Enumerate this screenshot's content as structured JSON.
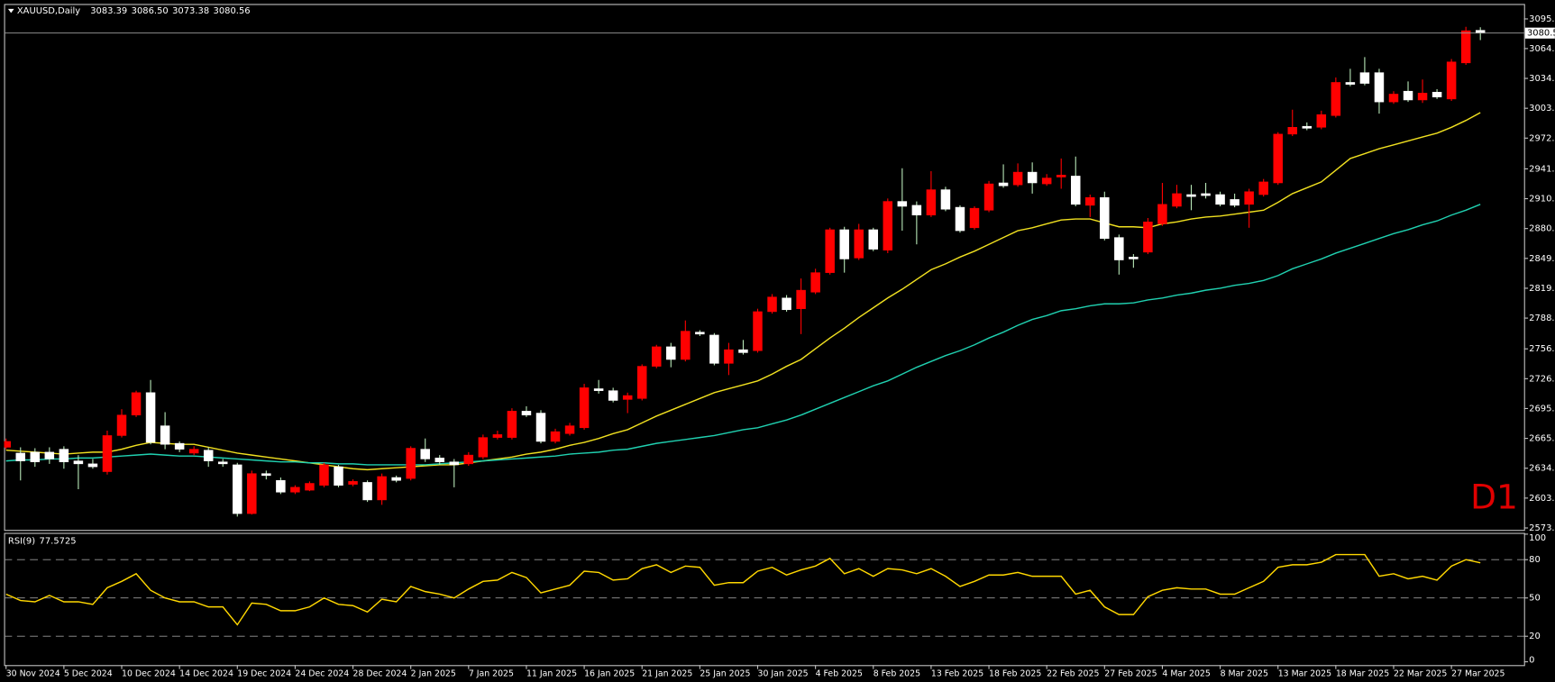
{
  "chart_data": [
    {
      "type": "candlestick",
      "title": "XAUUSD,Daily",
      "last_bar_labels": [
        "3083.39",
        "3086.50",
        "3073.38",
        "3080.56"
      ],
      "timeframe_label": "D1",
      "categories": [
        "30 Nov 2024",
        null,
        null,
        null,
        "5 Dec 2024",
        null,
        null,
        null,
        "10 Dec 2024",
        null,
        null,
        null,
        "14 Dec 2024",
        null,
        null,
        null,
        "19 Dec 2024",
        null,
        null,
        null,
        "24 Dec 2024",
        null,
        null,
        null,
        "28 Dec 2024",
        null,
        null,
        null,
        "2 Jan 2025",
        null,
        null,
        null,
        "7 Jan 2025",
        null,
        null,
        null,
        "11 Jan 2025",
        null,
        null,
        null,
        "16 Jan 2025",
        null,
        null,
        null,
        "21 Jan 2025",
        null,
        null,
        null,
        "25 Jan 2025",
        null,
        null,
        null,
        "30 Jan 2025",
        null,
        null,
        null,
        "4 Feb 2025",
        null,
        null,
        null,
        "8 Feb 2025",
        null,
        null,
        null,
        "13 Feb 2025",
        null,
        null,
        null,
        "18 Feb 2025",
        null,
        null,
        null,
        "22 Feb 2025",
        null,
        null,
        null,
        "27 Feb 2025",
        null,
        null,
        null,
        "4 Mar 2025",
        null,
        null,
        null,
        "8 Mar 2025",
        null,
        null,
        null,
        "13 Mar 2025",
        null,
        null,
        null,
        "18 Mar 2025",
        null,
        null,
        null,
        "22 Mar 2025",
        null,
        null,
        null,
        "27 Mar 2025",
        null,
        null
      ],
      "open": [
        2656,
        2650,
        2651,
        2651,
        2654,
        2642,
        2639,
        2631,
        2668,
        2689,
        2712,
        2678,
        2660,
        2650,
        2653,
        2641,
        2638,
        2588,
        2629,
        2622,
        2610,
        2612,
        2617,
        2636,
        2618,
        2620,
        2602,
        2625,
        2624,
        2654,
        2645,
        2641,
        2639,
        2646,
        2666,
        2666,
        2693,
        2691,
        2662,
        2670,
        2676,
        2716,
        2714,
        2705,
        2706,
        2739,
        2759,
        2746,
        2774,
        2771,
        2742,
        2756,
        2755,
        2795,
        2809,
        2798,
        2815,
        2835,
        2879,
        2850,
        2879,
        2858,
        2908,
        2904,
        2894,
        2920,
        2902,
        2881,
        2899,
        2927,
        2925,
        2938,
        2926,
        2933,
        2934,
        2904,
        2912,
        2871,
        2851,
        2856,
        2885,
        2903,
        2915,
        2916,
        2915,
        2910,
        2905,
        2915,
        2927,
        2977,
        2985,
        2984,
        2996,
        3030,
        3040,
        3040,
        3010,
        3021,
        3012,
        3020,
        3013,
        3050,
        3083.39
      ],
      "high": [
        2665,
        2656,
        2655,
        2656,
        2657,
        2648,
        2644,
        2673,
        2695,
        2714,
        2725,
        2692,
        2662,
        2657,
        2656,
        2644,
        2640,
        2632,
        2632,
        2625,
        2617,
        2621,
        2640,
        2638,
        2623,
        2622,
        2629,
        2627,
        2657,
        2665,
        2648,
        2644,
        2651,
        2669,
        2673,
        2696,
        2698,
        2694,
        2675,
        2681,
        2721,
        2725,
        2717,
        2712,
        2741,
        2761,
        2763,
        2786,
        2776,
        2773,
        2763,
        2766,
        2798,
        2813,
        2812,
        2829,
        2839,
        2881,
        2882,
        2885,
        2881,
        2911,
        2942,
        2908,
        2939,
        2923,
        2904,
        2903,
        2929,
        2946,
        2947,
        2948,
        2936,
        2952,
        2954,
        2915,
        2918,
        2874,
        2854,
        2891,
        2927,
        2925,
        2925,
        2927,
        2918,
        2916,
        2921,
        2931,
        2979,
        3002,
        2989,
        3001,
        3035,
        3044,
        3056,
        3044,
        3021,
        3031,
        3033,
        3023,
        3054,
        3087,
        3086.5
      ],
      "low": [
        2654,
        2622,
        2636,
        2639,
        2634,
        2613,
        2634,
        2628,
        2666,
        2687,
        2659,
        2654,
        2651,
        2648,
        2636,
        2636,
        2585,
        2587,
        2623,
        2608,
        2608,
        2611,
        2615,
        2615,
        2616,
        2600,
        2597,
        2620,
        2622,
        2641,
        2638,
        2615,
        2637,
        2644,
        2664,
        2664,
        2687,
        2660,
        2660,
        2668,
        2674,
        2711,
        2702,
        2691,
        2704,
        2737,
        2738,
        2744,
        2770,
        2740,
        2730,
        2751,
        2753,
        2793,
        2795,
        2772,
        2813,
        2833,
        2835,
        2848,
        2857,
        2855,
        2878,
        2864,
        2892,
        2898,
        2876,
        2879,
        2897,
        2922,
        2923,
        2916,
        2924,
        2921,
        2903,
        2892,
        2868,
        2833,
        2840,
        2854,
        2883,
        2901,
        2899,
        2911,
        2903,
        2902,
        2881,
        2913,
        2925,
        2975,
        2981,
        2982,
        2994,
        3026,
        3027,
        2998,
        3008,
        3010,
        3009,
        3013,
        3011,
        3048,
        3073.38
      ],
      "close": [
        2662,
        2642,
        2641,
        2644,
        2641,
        2639,
        2636,
        2668,
        2689,
        2712,
        2661,
        2659,
        2654,
        2654,
        2642,
        2639,
        2588,
        2629,
        2627,
        2610,
        2615,
        2619,
        2638,
        2617,
        2621,
        2602,
        2626,
        2622,
        2655,
        2644,
        2641,
        2638,
        2648,
        2666,
        2669,
        2693,
        2689,
        2662,
        2672,
        2678,
        2717,
        2714,
        2704,
        2709,
        2739,
        2759,
        2746,
        2775,
        2772,
        2742,
        2756,
        2753,
        2795,
        2810,
        2797,
        2817,
        2835,
        2879,
        2849,
        2879,
        2859,
        2908,
        2903,
        2894,
        2920,
        2900,
        2878,
        2901,
        2926,
        2924,
        2938,
        2927,
        2932,
        2935,
        2905,
        2912,
        2870,
        2848,
        2849,
        2887,
        2905,
        2916,
        2913,
        2914,
        2905,
        2904,
        2918,
        2928,
        2977,
        2984,
        2983,
        2997,
        3030,
        3028,
        3029,
        3010,
        3018,
        3012,
        3019,
        3015,
        3051,
        3083,
        3080.56
      ],
      "up_color": "#ff0000",
      "down_color": "#ffffff",
      "series": [
        {
          "color": "#f0e020",
          "values": [
            2653,
            2652,
            2651,
            2650,
            2649,
            2650,
            2651,
            2651,
            2654,
            2658,
            2661,
            2660,
            2659,
            2659,
            2656,
            2653,
            2650,
            2648,
            2646,
            2644,
            2642,
            2640,
            2638,
            2636,
            2634,
            2633,
            2634,
            2635,
            2636,
            2637,
            2638,
            2638,
            2640,
            2642,
            2644,
            2646,
            2649,
            2651,
            2654,
            2658,
            2661,
            2665,
            2670,
            2674,
            2681,
            2688,
            2694,
            2700,
            2706,
            2712,
            2716,
            2720,
            2724,
            2731,
            2739,
            2746,
            2757,
            2768,
            2778,
            2789,
            2799,
            2809,
            2818,
            2828,
            2838,
            2844,
            2851,
            2857,
            2864,
            2871,
            2878,
            2881,
            2885,
            2889,
            2890,
            2890,
            2886,
            2882,
            2882,
            2881,
            2885,
            2887,
            2890,
            2892,
            2893,
            2895,
            2897,
            2899,
            2907,
            2916,
            2922,
            2928,
            2940,
            2952,
            2957,
            2962,
            2966,
            2970,
            2974,
            2978,
            2984,
            2991,
            2999
          ]
        },
        {
          "color": "#20d0b0",
          "values": [
            2642,
            2643,
            2643,
            2644,
            2644,
            2645,
            2645,
            2646,
            2647,
            2648,
            2649,
            2648,
            2647,
            2647,
            2646,
            2645,
            2644,
            2643,
            2642,
            2641,
            2641,
            2640,
            2640,
            2639,
            2639,
            2638,
            2638,
            2638,
            2638,
            2638,
            2639,
            2640,
            2641,
            2642,
            2643,
            2644,
            2645,
            2646,
            2647,
            2649,
            2650,
            2651,
            2653,
            2654,
            2657,
            2660,
            2662,
            2664,
            2666,
            2668,
            2671,
            2674,
            2676,
            2680,
            2684,
            2689,
            2695,
            2701,
            2707,
            2713,
            2719,
            2724,
            2731,
            2738,
            2744,
            2750,
            2755,
            2761,
            2768,
            2774,
            2781,
            2787,
            2791,
            2796,
            2798,
            2801,
            2803,
            2803,
            2804,
            2807,
            2809,
            2812,
            2814,
            2817,
            2819,
            2822,
            2824,
            2827,
            2832,
            2839,
            2844,
            2849,
            2855,
            2860,
            2865,
            2870,
            2875,
            2879,
            2884,
            2888,
            2894,
            2899,
            2905
          ]
        }
      ],
      "current_price": {
        "value": 3080.56,
        "label": "3080.56"
      },
      "ylim": [
        2571.3,
        3110.4
      ],
      "yticks": [
        {
          "value": 3095.1,
          "label": "3095.10"
        },
        {
          "value": 3064.7,
          "label": "3064.70"
        },
        {
          "value": 3034.1,
          "label": "3034.10"
        },
        {
          "value": 3003.5,
          "label": "3003.50"
        },
        {
          "value": 2972.9,
          "label": "2972.90"
        },
        {
          "value": 2941.4,
          "label": "2941.40"
        },
        {
          "value": 2910.8,
          "label": "2910.80"
        },
        {
          "value": 2880.2,
          "label": "2880.20"
        },
        {
          "value": 2849.6,
          "label": "2849.60"
        },
        {
          "value": 2819,
          "label": "2819.00"
        },
        {
          "value": 2788.4,
          "label": "2788.40"
        },
        {
          "value": 2756.9,
          "label": "2756.90"
        },
        {
          "value": 2726.3,
          "label": "2726.30"
        },
        {
          "value": 2695.7,
          "label": "2695.70"
        },
        {
          "value": 2665.1,
          "label": "2665.10"
        },
        {
          "value": 2634.5,
          "label": "2634.50"
        },
        {
          "value": 2603.9,
          "label": "2603.90"
        },
        {
          "value": 2573.3,
          "label": "2573.30"
        }
      ]
    },
    {
      "type": "line",
      "title": "RSI(9)",
      "color": "#ffd700",
      "values": [
        53,
        48,
        47,
        52,
        47,
        47,
        45,
        58,
        63,
        69,
        56,
        50,
        47,
        47,
        43,
        43,
        29,
        46,
        45,
        40,
        40,
        43,
        50,
        45,
        44,
        39,
        49,
        47,
        59,
        55,
        53,
        50,
        57,
        63,
        64,
        70,
        66,
        54,
        57,
        60,
        71,
        70,
        64,
        65,
        73,
        76,
        70,
        75,
        74,
        60,
        62,
        62,
        71,
        74,
        68,
        72,
        75,
        81,
        69,
        73,
        67,
        73,
        72,
        69,
        73,
        67,
        59,
        63,
        68,
        68,
        70,
        67,
        67,
        67,
        53,
        56,
        43,
        37,
        37,
        51,
        56,
        58,
        57,
        57,
        53,
        53,
        58,
        63,
        74,
        76,
        76,
        78,
        84,
        84,
        84,
        67,
        69,
        65,
        67,
        64,
        75,
        80,
        77.5725
      ],
      "ylim": [
        -2.6,
        101
      ],
      "yticks": [
        0,
        20,
        50,
        80,
        100
      ],
      "levels": [
        20,
        50,
        80
      ]
    }
  ]
}
